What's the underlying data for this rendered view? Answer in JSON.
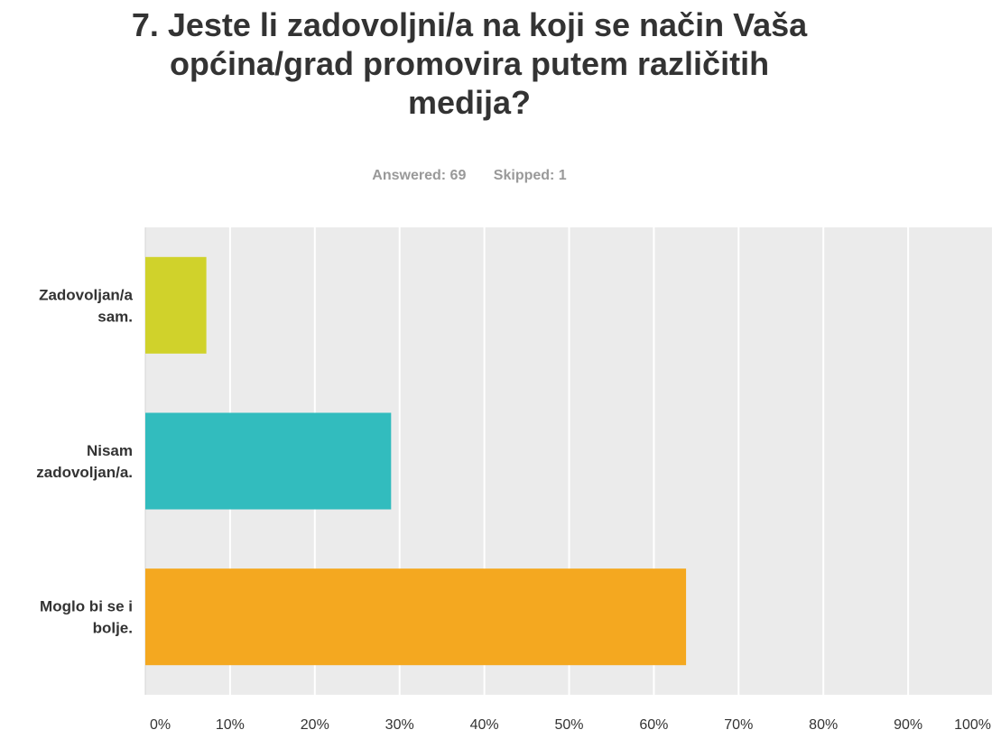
{
  "title_lines": [
    "7. Jeste li zadovoljni/a na koji se način Vaša",
    "općina/grad promovira putem različitih",
    "medija?"
  ],
  "stats": {
    "answered": "Answered: 69",
    "skipped": "Skipped: 1"
  },
  "chart_data": {
    "type": "bar",
    "orientation": "horizontal",
    "categories": [
      [
        "Zadovoljan/a",
        "sam."
      ],
      [
        "Nisam",
        "zadovoljan/a."
      ],
      [
        "Moglo bi se i",
        "bolje."
      ]
    ],
    "values": [
      7.2,
      29.0,
      63.8
    ],
    "colors": [
      "#d0d22b",
      "#32bcbe",
      "#f4a820"
    ],
    "xlim": [
      0,
      100
    ],
    "ticks": [
      "0%",
      "10%",
      "20%",
      "30%",
      "40%",
      "50%",
      "60%",
      "70%",
      "80%",
      "90%",
      "100%"
    ],
    "grid": true,
    "background": "#ebebeb",
    "gridline_color": "#ffffff"
  }
}
